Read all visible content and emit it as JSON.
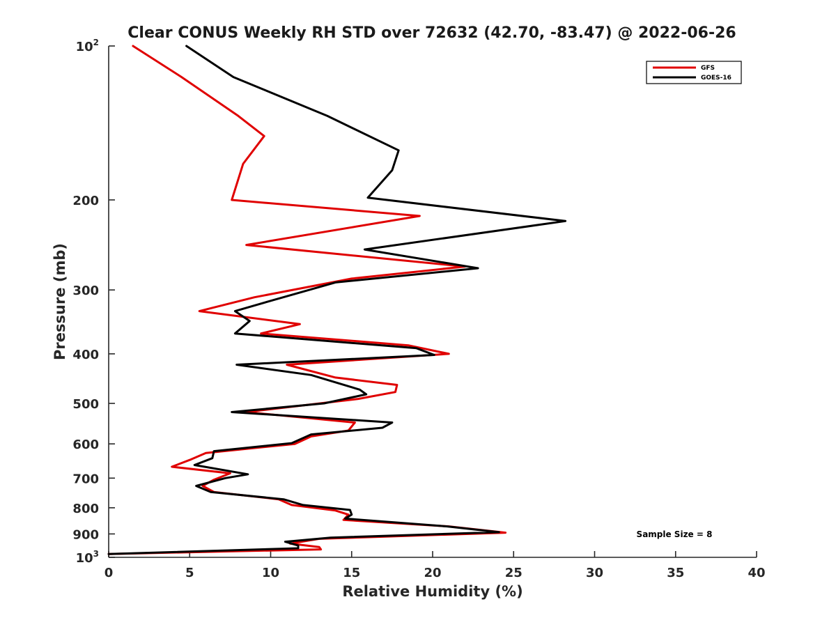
{
  "chart_data": {
    "type": "line",
    "title": "Clear CONUS Weekly RH STD over 72632 (42.70, -83.47) @ 2022-06-26",
    "xlabel": "Relative Humidity (%)",
    "ylabel": "Pressure (mb)",
    "xlim": [
      0,
      40
    ],
    "ylim": [
      100,
      1000
    ],
    "y_scale": "log",
    "y_reversed": true,
    "grid": false,
    "legend_position": "top-right",
    "x_ticks": [
      "0",
      "5",
      "10",
      "15",
      "20",
      "25",
      "30",
      "35",
      "40"
    ],
    "y_ticks": [
      {
        "value": 100,
        "base": "10",
        "exp": "2"
      },
      {
        "value": 200,
        "label": "200"
      },
      {
        "value": 300,
        "label": "300"
      },
      {
        "value": 400,
        "label": "400"
      },
      {
        "value": 500,
        "label": "500"
      },
      {
        "value": 600,
        "label": "600"
      },
      {
        "value": 700,
        "label": "700"
      },
      {
        "value": 800,
        "label": "800"
      },
      {
        "value": 900,
        "label": "900"
      },
      {
        "value": 1000,
        "base": "10",
        "exp": "3"
      }
    ],
    "annotation": "Sample Size = 8",
    "series": [
      {
        "name": "GFS",
        "color": "#e00000",
        "points": [
          {
            "x": 1.5,
            "y": 100
          },
          {
            "x": 4.5,
            "y": 115
          },
          {
            "x": 8.0,
            "y": 137
          },
          {
            "x": 9.6,
            "y": 150
          },
          {
            "x": 8.3,
            "y": 170
          },
          {
            "x": 7.6,
            "y": 200
          },
          {
            "x": 19.2,
            "y": 215
          },
          {
            "x": 8.5,
            "y": 245
          },
          {
            "x": 22.0,
            "y": 270
          },
          {
            "x": 15.0,
            "y": 285
          },
          {
            "x": 9.0,
            "y": 310
          },
          {
            "x": 5.6,
            "y": 330
          },
          {
            "x": 11.8,
            "y": 350
          },
          {
            "x": 9.4,
            "y": 365
          },
          {
            "x": 18.5,
            "y": 385
          },
          {
            "x": 21.0,
            "y": 400
          },
          {
            "x": 11.0,
            "y": 420
          },
          {
            "x": 14.0,
            "y": 445
          },
          {
            "x": 17.8,
            "y": 460
          },
          {
            "x": 17.7,
            "y": 475
          },
          {
            "x": 15.4,
            "y": 490
          },
          {
            "x": 8.5,
            "y": 520
          },
          {
            "x": 15.2,
            "y": 545
          },
          {
            "x": 14.8,
            "y": 565
          },
          {
            "x": 12.5,
            "y": 580
          },
          {
            "x": 11.5,
            "y": 600
          },
          {
            "x": 6.0,
            "y": 625
          },
          {
            "x": 5.0,
            "y": 645
          },
          {
            "x": 3.9,
            "y": 665
          },
          {
            "x": 7.5,
            "y": 685
          },
          {
            "x": 6.5,
            "y": 705
          },
          {
            "x": 5.8,
            "y": 725
          },
          {
            "x": 6.5,
            "y": 745
          },
          {
            "x": 10.5,
            "y": 770
          },
          {
            "x": 11.3,
            "y": 790
          },
          {
            "x": 14.0,
            "y": 810
          },
          {
            "x": 14.8,
            "y": 825
          },
          {
            "x": 14.5,
            "y": 845
          },
          {
            "x": 21.0,
            "y": 870
          },
          {
            "x": 24.5,
            "y": 895
          },
          {
            "x": 13.0,
            "y": 920
          },
          {
            "x": 11.2,
            "y": 940
          },
          {
            "x": 13.0,
            "y": 955
          },
          {
            "x": 13.1,
            "y": 965
          },
          {
            "x": 0.0,
            "y": 985
          }
        ]
      },
      {
        "name": "GOES-16",
        "color": "#000000",
        "points": [
          {
            "x": 4.8,
            "y": 100
          },
          {
            "x": 7.7,
            "y": 115
          },
          {
            "x": 13.5,
            "y": 137
          },
          {
            "x": 17.9,
            "y": 160
          },
          {
            "x": 17.5,
            "y": 175
          },
          {
            "x": 16.0,
            "y": 198
          },
          {
            "x": 28.2,
            "y": 220
          },
          {
            "x": 15.8,
            "y": 250
          },
          {
            "x": 22.8,
            "y": 272
          },
          {
            "x": 14.0,
            "y": 290
          },
          {
            "x": 10.0,
            "y": 315
          },
          {
            "x": 7.8,
            "y": 330
          },
          {
            "x": 8.7,
            "y": 345
          },
          {
            "x": 7.8,
            "y": 365
          },
          {
            "x": 19.0,
            "y": 390
          },
          {
            "x": 20.1,
            "y": 402
          },
          {
            "x": 7.9,
            "y": 420
          },
          {
            "x": 12.5,
            "y": 440
          },
          {
            "x": 15.5,
            "y": 470
          },
          {
            "x": 15.9,
            "y": 480
          },
          {
            "x": 13.3,
            "y": 500
          },
          {
            "x": 7.6,
            "y": 520
          },
          {
            "x": 17.5,
            "y": 545
          },
          {
            "x": 16.9,
            "y": 558
          },
          {
            "x": 12.5,
            "y": 575
          },
          {
            "x": 11.3,
            "y": 598
          },
          {
            "x": 6.5,
            "y": 620
          },
          {
            "x": 6.4,
            "y": 640
          },
          {
            "x": 5.3,
            "y": 660
          },
          {
            "x": 8.6,
            "y": 688
          },
          {
            "x": 7.2,
            "y": 700
          },
          {
            "x": 5.4,
            "y": 725
          },
          {
            "x": 6.3,
            "y": 745
          },
          {
            "x": 10.8,
            "y": 770
          },
          {
            "x": 12.0,
            "y": 790
          },
          {
            "x": 14.9,
            "y": 808
          },
          {
            "x": 15.0,
            "y": 825
          },
          {
            "x": 14.6,
            "y": 840
          },
          {
            "x": 20.9,
            "y": 870
          },
          {
            "x": 24.1,
            "y": 893
          },
          {
            "x": 13.7,
            "y": 915
          },
          {
            "x": 10.9,
            "y": 932
          },
          {
            "x": 11.7,
            "y": 948
          },
          {
            "x": 11.7,
            "y": 960
          },
          {
            "x": 0.0,
            "y": 985
          }
        ]
      }
    ]
  }
}
